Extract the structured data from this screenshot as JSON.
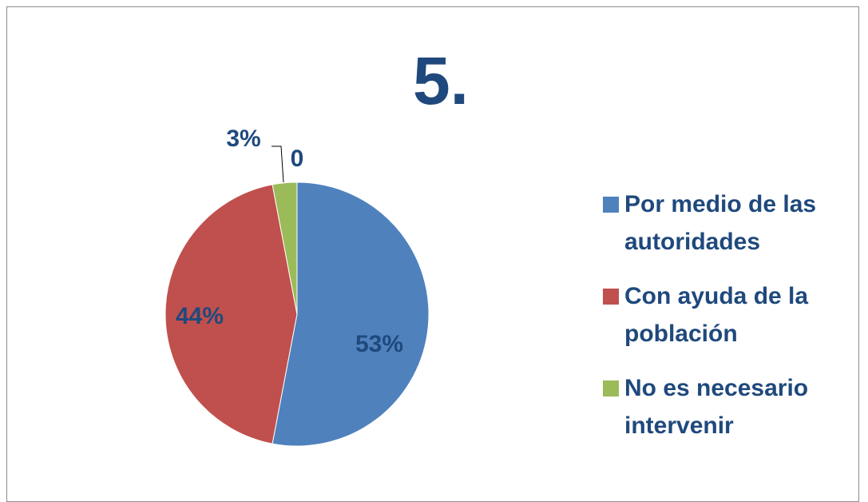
{
  "chart_data": {
    "type": "pie",
    "title": "5.",
    "categories": [
      "Por medio de las autoridades",
      "Con ayuda de la población",
      "No es necesario intervenir",
      null
    ],
    "values": [
      53,
      44,
      3,
      0
    ],
    "value_labels": [
      "53%",
      "44%",
      "3%",
      "0"
    ],
    "colors": [
      "#4f81bd",
      "#c0504d",
      "#9bbb59",
      "#8064a2"
    ],
    "legend": "right"
  }
}
